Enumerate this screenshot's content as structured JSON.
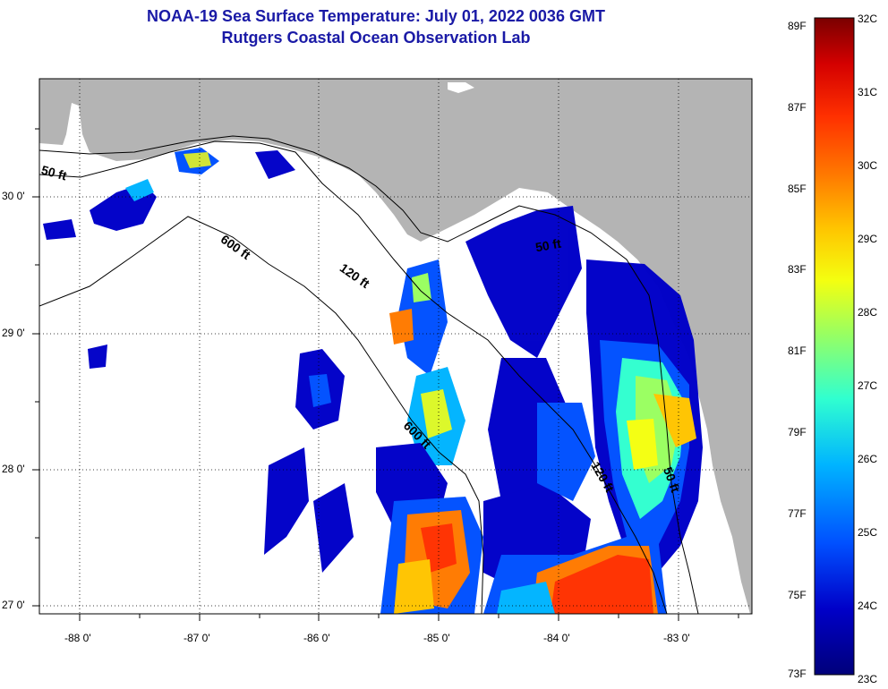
{
  "header": {
    "title_line1": "NOAA-19 Sea Surface Temperature:  July 01, 2022 0036 GMT",
    "title_line2": "Rutgers Coastal Ocean Observation Lab"
  },
  "axes": {
    "lon_labels": [
      "-88 0'",
      "-87 0'",
      "-86 0'",
      "-85 0'",
      "-84 0'",
      "-83 0'"
    ],
    "lat_labels": [
      "30 0'",
      "29 0'",
      "28 0'",
      "27 0'"
    ]
  },
  "map_labels": {
    "depth_50_west": "50 ft",
    "depth_600_a": "600 ft",
    "depth_120_a": "120 ft",
    "depth_600_b": "600 ft",
    "depth_120_b": "120 ft",
    "depth_50_east": "50 ft",
    "depth_50_ne": "50 ft"
  },
  "colorbar": {
    "fahrenheit": [
      "89F",
      "87F",
      "85F",
      "83F",
      "81F",
      "79F",
      "77F",
      "75F",
      "73F"
    ],
    "celsius": [
      "32C",
      "31C",
      "30C",
      "29C",
      "28C",
      "27C",
      "26C",
      "25C",
      "24C",
      "23C"
    ],
    "colors": [
      "#7a0000",
      "#d40000",
      "#ff3000",
      "#ff7a00",
      "#ffc400",
      "#f4ff10",
      "#9aff60",
      "#30ffd0",
      "#00b4ff",
      "#0050ff",
      "#0000c8",
      "#00007a"
    ]
  },
  "colors": {
    "land": "#b4b4b4",
    "ocean": "#ffffff",
    "title": "#1a1aa6"
  }
}
